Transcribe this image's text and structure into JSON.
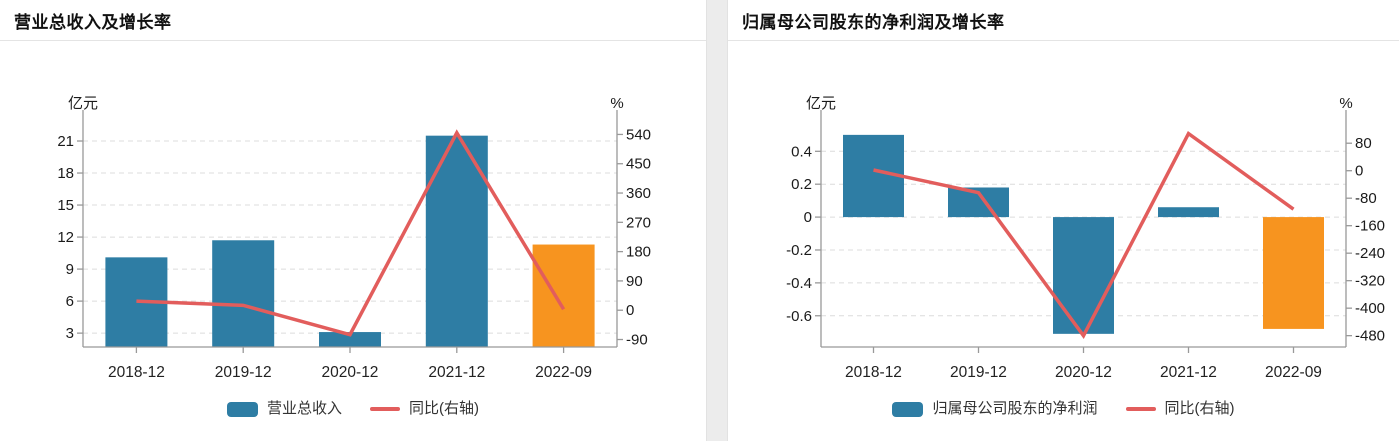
{
  "colors": {
    "grid": "#dcdcdc",
    "axis": "#999999",
    "tick_text": "#1a1a1a",
    "xlabel_text": "#222222",
    "title_text": "#111111",
    "bar_blue": "#2e7da4",
    "bar_orange": "#f7941f",
    "line_red": "#e25d5c"
  },
  "panels": [
    {
      "title": "营业总收入及增长率",
      "legend": {
        "bar_label": "营业总收入",
        "line_label": "同比(右轴)"
      },
      "chart_data": {
        "type": "bar+line",
        "categories": [
          "2018-12",
          "2019-12",
          "2020-12",
          "2021-12",
          "2022-09"
        ],
        "left_axis": {
          "label": "亿元",
          "ticks": [
            3,
            6,
            9,
            12,
            15,
            18,
            21
          ],
          "range": [
            1.7,
            22.5
          ]
        },
        "right_axis": {
          "label": "%",
          "ticks": [
            -90,
            0,
            90,
            180,
            270,
            360,
            450,
            540
          ],
          "range": [
            -113,
            569
          ]
        },
        "series": [
          {
            "name": "营业总收入",
            "type": "bar",
            "axis": "left",
            "unit": "亿元",
            "values": [
              10.1,
              11.7,
              3.1,
              21.5,
              11.3
            ],
            "colors": [
              "#2e7da4",
              "#2e7da4",
              "#2e7da4",
              "#2e7da4",
              "#f7941f"
            ]
          },
          {
            "name": "同比(右轴)",
            "type": "line",
            "axis": "right",
            "unit": "%",
            "values": [
              28,
              15,
              -75,
              545,
              3
            ],
            "color": "#e25d5c"
          }
        ],
        "grid": "dashed",
        "legend_position": "bottom"
      }
    },
    {
      "title": "归属母公司股东的净利润及增长率",
      "legend": {
        "bar_label": "归属母公司股东的净利润",
        "line_label": "同比(右轴)"
      },
      "chart_data": {
        "type": "bar+line",
        "categories": [
          "2018-12",
          "2019-12",
          "2020-12",
          "2021-12",
          "2022-09"
        ],
        "left_axis": {
          "label": "亿元",
          "ticks": [
            -0.6,
            -0.4,
            -0.2,
            0,
            0.2,
            0.4
          ],
          "range": [
            -0.79,
            0.56
          ]
        },
        "right_axis": {
          "label": "%",
          "ticks": [
            -480,
            -400,
            -320,
            -240,
            -160,
            -80,
            0,
            80
          ],
          "range": [
            -513,
            133
          ]
        },
        "series": [
          {
            "name": "归属母公司股东的净利润",
            "type": "bar",
            "axis": "left",
            "unit": "亿元",
            "values": [
              0.5,
              0.18,
              -0.71,
              0.06,
              -0.68
            ],
            "colors": [
              "#2e7da4",
              "#2e7da4",
              "#2e7da4",
              "#2e7da4",
              "#f7941f"
            ]
          },
          {
            "name": "同比(右轴)",
            "type": "line",
            "axis": "right",
            "unit": "%",
            "values": [
              2,
              -64,
              -480,
              108,
              -112
            ],
            "color": "#e25d5c"
          }
        ],
        "grid": "dashed",
        "legend_position": "bottom"
      }
    }
  ]
}
